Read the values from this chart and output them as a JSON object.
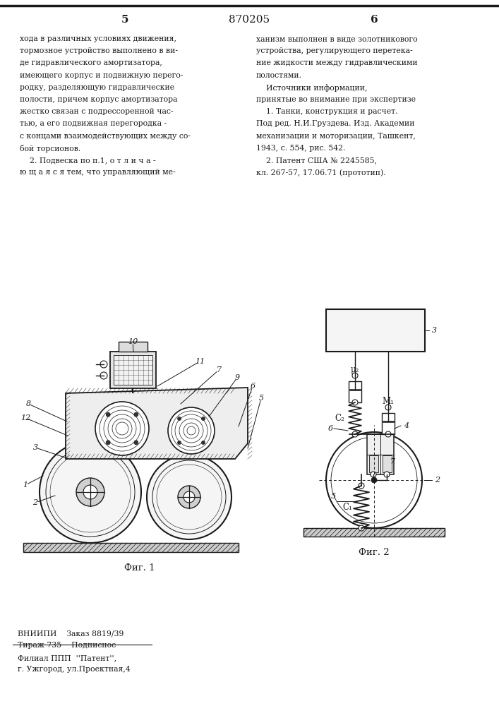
{
  "patent_number": "870205",
  "page_left": "5",
  "page_right": "6",
  "bg_color": "#ffffff",
  "text_color": "#1a1a1a",
  "line_color": "#1a1a1a",
  "fig1_caption": "Фиг. 1",
  "fig2_caption": "Фиг. 2",
  "left_col_texts": [
    "хода в различных условиях движения,",
    "тормозное устройство выполнено в ви-",
    "де гидравлического амортизатора,",
    "имеющего корпус и подвижную перего-",
    "родку, разделяющую гидравлические",
    "полости, причем корпус амортизатора",
    "жестко связан с подрессоренной час-",
    "тью, а его подвижная перегородка -",
    "с концами взаимодействующих между со-",
    "бой торсионов.",
    "    2. Подвеска по п.1, о т л и ч а -",
    "ю щ а я с я тем, что управляющий ме-"
  ],
  "right_col_texts": [
    "ханизм выполнен в виде золотникового",
    "устройства, регулирующего перетека-",
    "ние жидкости между гидравлическими",
    "полостями.",
    "    Источники информации,",
    "принятые во внимание при экспертизе",
    "    1. Танки, конструкция и расчет.",
    "Под ред. Н.И.Груздева. Изд. Академии",
    "механизации и моторизации, Ташкент,",
    "1943, с. 554, рис. 542.",
    "    2. Патент США № 2245585,",
    "кл. 267-57, 17.06.71 (прототип)."
  ],
  "footer_texts": [
    "ВНИИПИ    Заказ 8819/39",
    "Тираж 735    Подписное",
    "Филиал ППП  ''Патент'',",
    "г. Ужгород, ул.Проектная,4"
  ]
}
